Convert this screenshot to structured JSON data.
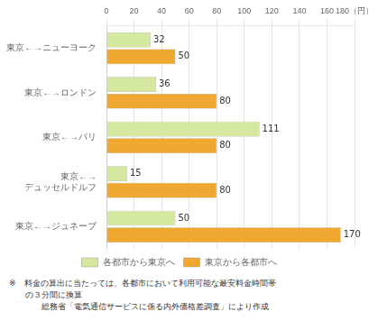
{
  "chart_data": {
    "type": "bar",
    "orientation": "horizontal",
    "categories": [
      "東京←→ニューヨーク",
      "東京←→ロンドン",
      "東京←→パリ",
      "東京←→\n　デュッセルドルフ",
      "東京←→ジュネーブ"
    ],
    "series": [
      {
        "name": "各都市から東京へ",
        "color": "#d4e8a0",
        "values": [
          32,
          36,
          111,
          15,
          50
        ]
      },
      {
        "name": "東京から各都市へ",
        "color": "#f0a830",
        "values": [
          50,
          80,
          80,
          80,
          170
        ]
      }
    ],
    "xlim": [
      0,
      180
    ],
    "xticks": [
      0,
      20,
      40,
      60,
      80,
      100,
      120,
      140,
      160,
      {
        "value": 180,
        "label": "180（円）"
      }
    ],
    "grid": true,
    "legend": "bottom",
    "data_labels": true,
    "annotations": [
      "※　料金の算出に当たっては、各都市において利用可能な最安料金時間帯",
      "　　の３分間に換算",
      "　　　　総務省「電気通信サービスに係る内外価格差調査」により作成"
    ]
  }
}
